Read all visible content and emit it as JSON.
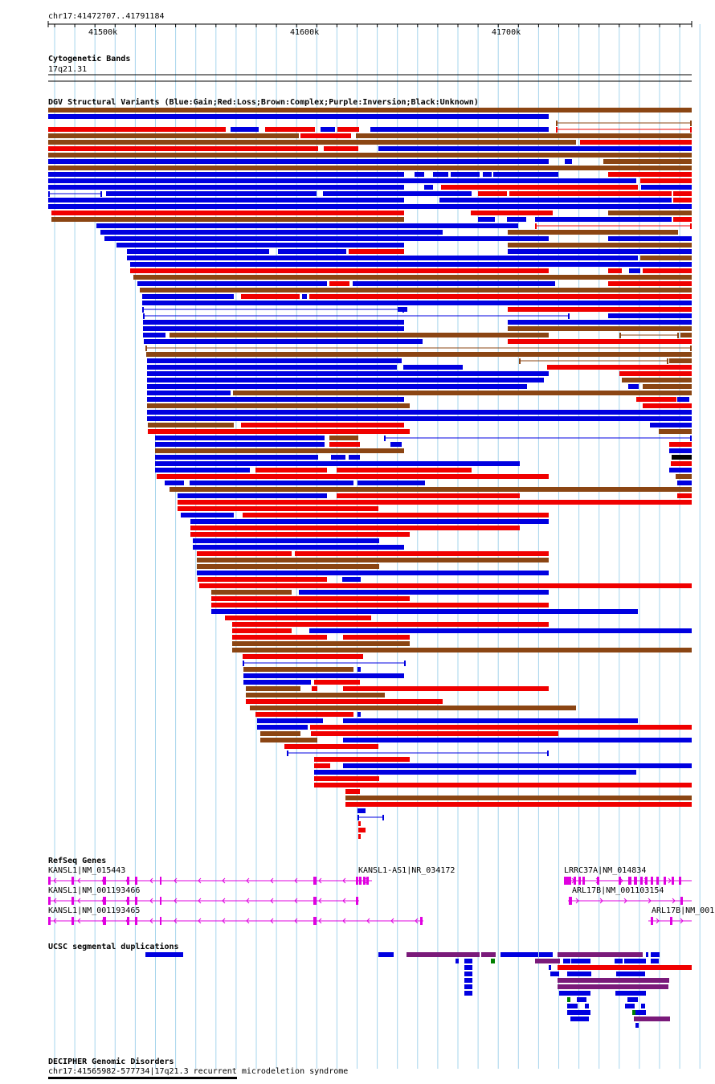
{
  "header": {
    "locus": "chr17:41472707..41791184"
  },
  "ruler": {
    "ticks": [
      "41500k",
      "41600k",
      "41700k"
    ]
  },
  "cytoband": {
    "title": "Cytogenetic Bands",
    "band": "17q21.31"
  },
  "dgv": {
    "title": "DGV Structural Variants (Blue:Gain;Red:Loss;Brown:Complex;Purple:Inversion;Black:Unknown)"
  },
  "refseq": {
    "title": "RefSeq Genes",
    "genes": [
      {
        "label": "KANSL1|NM_015443"
      },
      {
        "label": "KANSL1|NM_001193466"
      },
      {
        "label": "KANSL1|NM_001193465"
      },
      {
        "label": "KANSL1-AS1|NR_034172"
      },
      {
        "label": "LRRC37A|NM_014834"
      },
      {
        "label": "ARL17B|NM_001103154"
      },
      {
        "label": "ARL17B|NM_001"
      }
    ]
  },
  "segdup": {
    "title": "UCSC segmental duplications"
  },
  "decipher": {
    "title": "DECIPHER Genomic Disorders",
    "item": "chr17:41565982-577734|17q21.3 recurrent microdeletion syndrome"
  },
  "colors": {
    "gain": "#0000e0",
    "loss": "#f00000",
    "complex": "#8b4513",
    "inversion": "#7a1a7a",
    "unknown": "#000000",
    "gene": "#e000e0",
    "segdup_green": "#008000",
    "grid": "#a6d4ec"
  },
  "chart_data": {
    "type": "genome-tracks",
    "x_unit": "bp",
    "xlim": [
      41472707,
      41791184
    ],
    "dgv_variants_bp": [
      [
        "complex",
        41472707,
        41791184
      ],
      [
        "gain",
        41472707,
        41719000
      ],
      [
        "complex-line",
        41719000,
        41791184
      ],
      [
        "loss",
        41472707,
        41560000
      ],
      [
        "gain",
        41563000,
        41578000
      ],
      [
        "loss",
        41582000,
        41607000
      ],
      [
        "gain",
        41610000,
        41617000
      ],
      [
        "loss",
        41620000,
        41631000
      ],
      [
        "gain",
        41633000,
        41719000
      ],
      [
        "loss-line",
        41720000,
        41791184
      ],
      [
        "complex",
        41472707,
        41596000
      ],
      [
        "loss",
        41598000,
        41627000
      ],
      [
        "complex",
        41628000,
        41791184
      ],
      [
        "complex",
        41472707,
        41733000
      ],
      [
        "loss",
        41736000,
        41791184
      ],
      [
        "loss",
        41472707,
        41607000
      ],
      [
        "loss",
        41609000,
        41626000
      ],
      [
        "gain",
        41637000,
        41791184
      ],
      [
        "complex",
        41472707,
        41791184
      ],
      [
        "gain",
        41472707,
        41720000
      ],
      [
        "gain",
        41730000,
        41733000
      ],
      [
        "complex",
        41747000,
        41791184
      ],
      [
        "complex",
        41472707,
        41791184
      ],
      [
        "gain",
        41472707,
        41650000
      ],
      [
        "gain",
        41654000,
        41659000
      ],
      [
        "gain",
        41662000,
        41670000
      ],
      [
        "gain",
        41672000,
        41686000
      ],
      [
        "gain",
        41688000,
        41725000
      ],
      [
        "loss",
        41750000,
        41791184
      ],
      [
        "gain",
        41472707,
        41765000
      ],
      [
        "loss",
        41766000,
        41791184
      ],
      [
        "gain",
        41472707,
        41650000
      ],
      [
        "gain",
        41660000,
        41664000
      ],
      [
        "loss",
        41669000,
        41767000
      ],
      [
        "gain",
        41770000,
        41791184
      ],
      [
        "gain-line",
        41472707,
        41500000
      ],
      [
        "gain",
        41501000,
        41605000
      ],
      [
        "gain",
        41609000,
        41663000
      ],
      [
        "loss",
        41665000,
        41681000
      ],
      [
        "loss",
        41682000,
        41694000
      ],
      [
        "loss",
        41695000,
        41781000
      ],
      [
        "loss",
        41782000,
        41791184
      ],
      [
        "gain",
        41472707,
        41650000
      ],
      [
        "gain",
        41663000,
        41781000
      ],
      [
        "loss",
        41782000,
        41791184
      ],
      [
        "gain",
        41472707,
        41791184
      ],
      [
        "loss",
        41474000,
        41650000
      ],
      [
        "loss",
        41683000,
        41724000
      ],
      [
        "complex",
        41750000,
        41791184
      ],
      [
        "complex",
        41474000,
        41650000
      ],
      [
        "gain",
        41688000,
        41693000
      ],
      [
        "gain",
        41701000,
        41710000
      ],
      [
        "gain",
        41713000,
        41781000
      ],
      [
        "loss",
        41782000,
        41791184
      ],
      [
        "gain",
        41496000,
        41707000
      ],
      [
        "loss-line",
        41707000,
        41791184
      ],
      [
        "gain",
        41500000,
        41669000
      ],
      [
        "complex",
        41700000,
        41785000
      ],
      [
        "gain",
        41501000,
        41700000
      ],
      [
        "gain",
        41711000,
        41720000
      ],
      [
        "gain",
        41750000,
        41791184
      ],
      [
        "gain",
        41507000,
        41650000
      ],
      [
        "complex",
        41700000,
        41791184
      ]
    ],
    "segmental_duplications_shown": true
  }
}
